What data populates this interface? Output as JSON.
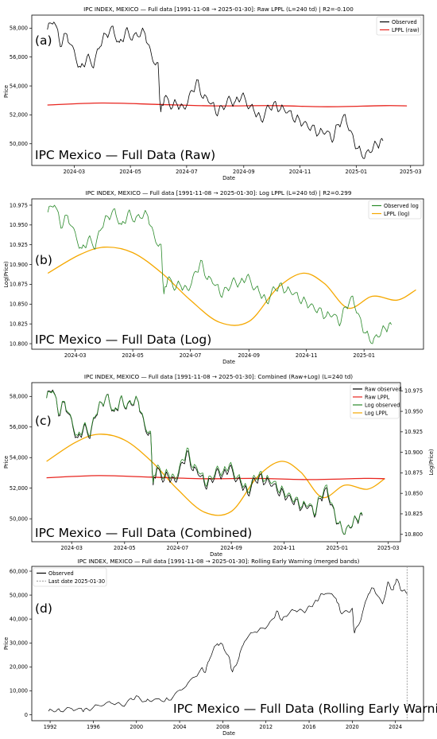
{
  "panels": [
    {
      "title": "IPC INDEX, MEXICO — Full data [1991-11-08 → 2025-01-30]: Raw LPPL (L=240 td) | R2=-0.100",
      "panel_label": "(a)",
      "overlay": "IPC Mexico — Full Data (Raw)",
      "xlabel": "Date",
      "ylabel": "Price",
      "x_ticks": [
        "2024-03",
        "2024-05",
        "2024-07",
        "2024-09",
        "2024-11",
        "2025-01",
        "2025-03"
      ],
      "y_ticks": [
        "50,000",
        "52,000",
        "54,000",
        "56,000",
        "58,000"
      ],
      "legend": [
        "Observed",
        "LPPL (raw)"
      ]
    },
    {
      "title": "IPC INDEX, MEXICO — Full data [1991-11-08 → 2025-01-30]: Log LPPL (L=240 td) | R2=0.299",
      "panel_label": "(b)",
      "overlay": "IPC Mexico — Full Data (Log)",
      "xlabel": "Date",
      "ylabel": "Log(Price)",
      "x_ticks": [
        "2024-03",
        "2024-05",
        "2024-07",
        "2024-09",
        "2024-11",
        "2025-01"
      ],
      "y_ticks": [
        "10.800",
        "10.825",
        "10.850",
        "10.875",
        "10.900",
        "10.925",
        "10.950",
        "10.975"
      ],
      "legend": [
        "Observed log",
        "LPPL (log)"
      ]
    },
    {
      "title": "IPC INDEX, MEXICO — Full data [1991-11-08 → 2025-01-30]: Combined (Raw+Log) (L=240 td)",
      "panel_label": "(c)",
      "overlay": "IPC Mexico — Full Data (Combined)",
      "xlabel": "Date",
      "ylabel": "Price",
      "ylabel_right": "Log(Price)",
      "x_ticks": [
        "2024-03",
        "2024-05",
        "2024-07",
        "2024-09",
        "2024-11",
        "2025-01",
        "2025-03"
      ],
      "y_ticks": [
        "50,000",
        "52,000",
        "54,000",
        "56,000",
        "58,000"
      ],
      "y_ticks_right": [
        "10.800",
        "10.825",
        "10.850",
        "10.875",
        "10.900",
        "10.925",
        "10.950",
        "10.975"
      ],
      "legend": [
        "Raw observed",
        "Raw LPPL",
        "Log observed",
        "Log LPPL"
      ]
    },
    {
      "title": "IPC INDEX, MEXICO — Full data [1991-11-08 → 2025-01-30]: Rolling Early Warning (merged bands)",
      "panel_label": "(d)",
      "overlay": "IPC Mexico — Full Data (Rolling Early Warning)",
      "xlabel": "Date",
      "ylabel": "Price",
      "x_ticks": [
        "1992",
        "1996",
        "2000",
        "2004",
        "2008",
        "2012",
        "2016",
        "2020",
        "2024"
      ],
      "y_ticks": [
        "0",
        "10,000",
        "20,000",
        "30,000",
        "40,000",
        "50,000",
        "60,000"
      ],
      "legend": [
        "Observed",
        "Last date 2025-01-30"
      ]
    }
  ],
  "chart_data": [
    {
      "type": "line",
      "title": "IPC INDEX, MEXICO — Full data [1991-11-08 → 2025-01-30]: Raw LPPL (L=240 td) | R2=-0.100",
      "xlabel": "Date",
      "ylabel": "Price",
      "xlim": [
        "2024-01-15",
        "2025-03-15"
      ],
      "ylim": [
        48500,
        58900
      ],
      "series": [
        {
          "name": "Observed",
          "color": "#000000",
          "x": [
            "2024-02-01",
            "2024-02-08",
            "2024-02-15",
            "2024-02-22",
            "2024-03-01",
            "2024-03-08",
            "2024-03-15",
            "2024-03-22",
            "2024-03-29",
            "2024-04-05",
            "2024-04-12",
            "2024-04-19",
            "2024-04-26",
            "2024-05-03",
            "2024-05-10",
            "2024-05-17",
            "2024-05-24",
            "2024-05-31",
            "2024-06-03",
            "2024-06-07",
            "2024-06-14",
            "2024-06-21",
            "2024-06-28",
            "2024-07-05",
            "2024-07-12",
            "2024-07-19",
            "2024-07-26",
            "2024-08-02",
            "2024-08-09",
            "2024-08-16",
            "2024-08-23",
            "2024-08-30",
            "2024-09-06",
            "2024-09-13",
            "2024-09-20",
            "2024-09-27",
            "2024-10-04",
            "2024-10-11",
            "2024-10-18",
            "2024-10-25",
            "2024-11-01",
            "2024-11-08",
            "2024-11-15",
            "2024-11-22",
            "2024-11-29",
            "2024-12-06",
            "2024-12-13",
            "2024-12-20",
            "2024-12-27",
            "2025-01-03",
            "2025-01-10",
            "2025-01-17",
            "2025-01-24",
            "2025-01-30"
          ],
          "y": [
            57900,
            58600,
            56900,
            57600,
            56300,
            55100,
            56000,
            55400,
            56900,
            57600,
            58000,
            56800,
            57800,
            57300,
            57600,
            57700,
            56000,
            55400,
            52100,
            53300,
            52600,
            52800,
            52400,
            53400,
            54300,
            53200,
            53000,
            52200,
            52500,
            53100,
            52800,
            53400,
            52600,
            52300,
            51600,
            52500,
            52700,
            52400,
            52300,
            51800,
            51600,
            51300,
            51100,
            50700,
            50900,
            50300,
            51400,
            51900,
            50600,
            49600,
            49100,
            49600,
            50000,
            50200
          ]
        },
        {
          "name": "LPPL (raw)",
          "color": "#e8251f",
          "x": [
            "2024-02-01",
            "2024-04-01",
            "2024-06-01",
            "2024-08-01",
            "2024-10-01",
            "2024-12-01",
            "2025-02-01",
            "2025-02-25"
          ],
          "y": [
            52680,
            52820,
            52720,
            52620,
            52640,
            52560,
            52640,
            52620
          ]
        }
      ]
    },
    {
      "type": "line",
      "title": "IPC INDEX, MEXICO — Full data [1991-11-08 → 2025-01-30]: Log LPPL (L=240 td) | R2=0.299",
      "xlabel": "Date",
      "ylabel": "Log(Price)",
      "xlim": [
        "2024-01-15",
        "2025-03-05"
      ],
      "ylim": [
        10.793,
        10.983
      ],
      "series": [
        {
          "name": "Observed log",
          "color": "#2a8a2a",
          "x": [
            "2024-02-01",
            "2024-02-08",
            "2024-02-15",
            "2024-02-22",
            "2024-03-01",
            "2024-03-08",
            "2024-03-15",
            "2024-03-22",
            "2024-03-29",
            "2024-04-05",
            "2024-04-12",
            "2024-04-19",
            "2024-04-26",
            "2024-05-03",
            "2024-05-10",
            "2024-05-17",
            "2024-05-24",
            "2024-05-31",
            "2024-06-03",
            "2024-06-07",
            "2024-06-14",
            "2024-06-21",
            "2024-06-28",
            "2024-07-05",
            "2024-07-12",
            "2024-07-19",
            "2024-07-26",
            "2024-08-02",
            "2024-08-09",
            "2024-08-16",
            "2024-08-23",
            "2024-08-30",
            "2024-09-06",
            "2024-09-13",
            "2024-09-20",
            "2024-09-27",
            "2024-10-04",
            "2024-10-11",
            "2024-10-18",
            "2024-10-25",
            "2024-11-01",
            "2024-11-08",
            "2024-11-15",
            "2024-11-22",
            "2024-11-29",
            "2024-12-06",
            "2024-12-13",
            "2024-12-20",
            "2024-12-27",
            "2025-01-03",
            "2025-01-10",
            "2025-01-17",
            "2025-01-24",
            "2025-01-30"
          ],
          "y": [
            10.966,
            10.978,
            10.949,
            10.962,
            10.938,
            10.917,
            10.933,
            10.922,
            10.949,
            10.961,
            10.968,
            10.947,
            10.965,
            10.956,
            10.962,
            10.963,
            10.933,
            10.922,
            10.861,
            10.884,
            10.871,
            10.875,
            10.867,
            10.886,
            10.903,
            10.882,
            10.878,
            10.863,
            10.869,
            10.88,
            10.875,
            10.886,
            10.871,
            10.865,
            10.852,
            10.869,
            10.873,
            10.867,
            10.865,
            10.856,
            10.852,
            10.846,
            10.842,
            10.834,
            10.838,
            10.826,
            10.848,
            10.858,
            10.832,
            10.812,
            10.802,
            10.812,
            10.82,
            10.824
          ]
        },
        {
          "name": "LPPL (log)",
          "color": "#f5a800",
          "x": [
            "2024-02-01",
            "2024-03-05",
            "2024-04-01",
            "2024-05-01",
            "2024-06-01",
            "2024-07-01",
            "2024-08-01",
            "2024-09-01",
            "2024-10-01",
            "2024-10-28",
            "2024-11-20",
            "2024-12-15",
            "2025-01-10",
            "2025-02-05",
            "2025-02-25"
          ],
          "y": [
            10.889,
            10.912,
            10.922,
            10.915,
            10.889,
            10.855,
            10.827,
            10.828,
            10.87,
            10.889,
            10.876,
            10.845,
            10.86,
            10.855,
            10.868
          ]
        }
      ]
    },
    {
      "type": "line",
      "title": "IPC INDEX, MEXICO — Full data [1991-11-08 → 2025-01-30]: Combined (Raw+Log) (L=240 td)",
      "xlabel": "Date",
      "ylabel": "Price",
      "ylabel_right": "Log(Price)",
      "xlim": [
        "2024-01-15",
        "2025-03-15"
      ],
      "ylim": [
        48500,
        58900
      ],
      "ylim_right": [
        10.791,
        10.985
      ],
      "series": [
        {
          "name": "Raw observed",
          "color": "#000000",
          "axis": "left"
        },
        {
          "name": "Raw LPPL",
          "color": "#e8251f",
          "axis": "left"
        },
        {
          "name": "Log observed",
          "color": "#2a8a2a",
          "axis": "right"
        },
        {
          "name": "Log LPPL",
          "color": "#f5a800",
          "axis": "right"
        }
      ]
    },
    {
      "type": "line",
      "title": "IPC INDEX, MEXICO — Full data [1991-11-08 → 2025-01-30]: Rolling Early Warning (merged bands)",
      "xlabel": "Date",
      "ylabel": "Price",
      "xlim": [
        1990.3,
        2026.6
      ],
      "ylim": [
        -2500,
        62000
      ],
      "series": [
        {
          "name": "Observed",
          "color": "#000000",
          "x": [
            1991.85,
            1992.5,
            1993.0,
            1994.0,
            1994.9,
            1995.2,
            1996.0,
            1997.0,
            1997.8,
            1998.7,
            1999.5,
            2000.0,
            2000.9,
            2001.5,
            2002.5,
            2003.0,
            2004.0,
            2005.0,
            2006.0,
            2006.4,
            2006.8,
            2007.5,
            2008.0,
            2008.6,
            2008.9,
            2009.5,
            2010.0,
            2011.0,
            2011.8,
            2012.5,
            2013.0,
            2013.5,
            2014.0,
            2014.7,
            2015.5,
            2016.0,
            2016.5,
            2017.0,
            2017.5,
            2018.5,
            2018.9,
            2019.5,
            2020.0,
            2020.2,
            2020.8,
            2021.5,
            2022.0,
            2022.8,
            2023.3,
            2023.8,
            2024.1,
            2024.5,
            2025.08
          ],
          "y": [
            1500,
            1700,
            1800,
            2600,
            2200,
            1800,
            3000,
            4500,
            5100,
            3800,
            6500,
            7400,
            5500,
            6200,
            6000,
            6300,
            10000,
            14000,
            19000,
            18000,
            24000,
            30000,
            29000,
            23500,
            17500,
            24000,
            31000,
            35000,
            36000,
            39000,
            43000,
            39500,
            42000,
            44000,
            43000,
            45000,
            46500,
            49500,
            51000,
            49000,
            43000,
            43000,
            44000,
            34000,
            40000,
            51000,
            53000,
            46000,
            55000,
            52000,
            57000,
            52500,
            50500
          ]
        }
      ]
    }
  ],
  "colors": {
    "observed": "#000000",
    "raw_lppl": "#e8251f",
    "log_observed": "#2a8a2a",
    "log_lppl": "#f5a800",
    "last_date_line": "#999999"
  }
}
